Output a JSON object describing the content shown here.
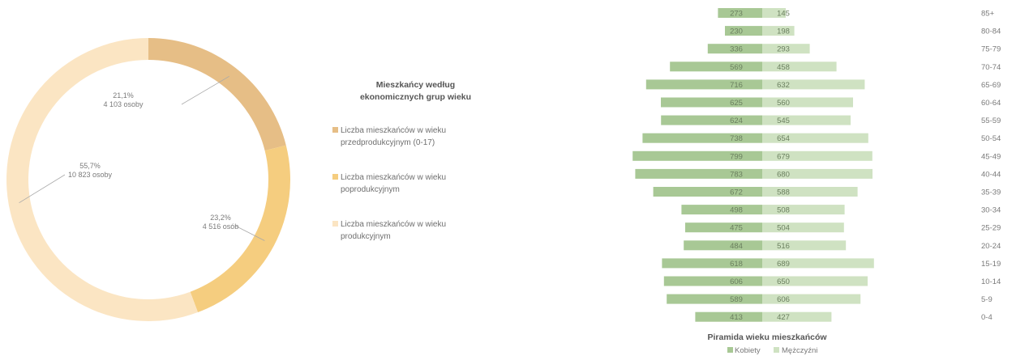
{
  "colors": {
    "donut_segments": [
      "#e6be86",
      "#f5cd7f",
      "#fbe5c3"
    ],
    "women": "#a8c895",
    "men": "#cfe2c2",
    "bar_label": "#6a7f5e",
    "age_label": "#7a7a7a"
  },
  "chart_data": [
    {
      "type": "pie",
      "variant": "donut",
      "title": "",
      "labels": [
        "Liczba mieszkańców w wieku przedprodukcyjnym (0-17)",
        "Liczba mieszkańców w wieku poprodukcyjnym",
        "Liczba mieszkańców w wieku produkcyjnym"
      ],
      "values": [
        4103,
        4516,
        10823
      ],
      "percent_labels": [
        "21,1%",
        "23,2%",
        "55,7%"
      ],
      "count_labels": [
        "4 103 osoby",
        "4 516 osób",
        "10 823 osoby"
      ],
      "legend_title_lines": [
        "Mieszkańcy według",
        "ekonomicznych grup wieku"
      ],
      "legend_lines": [
        [
          "Liczba mieszkańców w wieku",
          "przedprodukcyjnym (0-17)"
        ],
        [
          "Liczba mieszkańców w wieku",
          "poprodukcyjnym"
        ],
        [
          "Liczba mieszkańców w wieku",
          "produkcyjnym"
        ]
      ],
      "legend_position": "right"
    },
    {
      "type": "bar",
      "orientation": "horizontal",
      "variant": "population pyramid",
      "title": "Piramida wieku mieszkańców",
      "categories": [
        "85+",
        "80-84",
        "75-79",
        "70-74",
        "65-69",
        "60-64",
        "55-59",
        "50-54",
        "45-49",
        "40-44",
        "35-39",
        "30-34",
        "25-29",
        "20-24",
        "15-19",
        "10-14",
        "5-9",
        "0-4"
      ],
      "series": [
        {
          "name": "Kobiety",
          "values": [
            273,
            230,
            336,
            569,
            716,
            625,
            624,
            738,
            799,
            783,
            672,
            498,
            475,
            484,
            618,
            606,
            589,
            413
          ]
        },
        {
          "name": "Mężczyźni",
          "values": [
            145,
            198,
            293,
            458,
            632,
            560,
            545,
            654,
            679,
            680,
            588,
            508,
            504,
            516,
            689,
            650,
            606,
            427
          ]
        }
      ],
      "legend_position": "bottom"
    }
  ]
}
